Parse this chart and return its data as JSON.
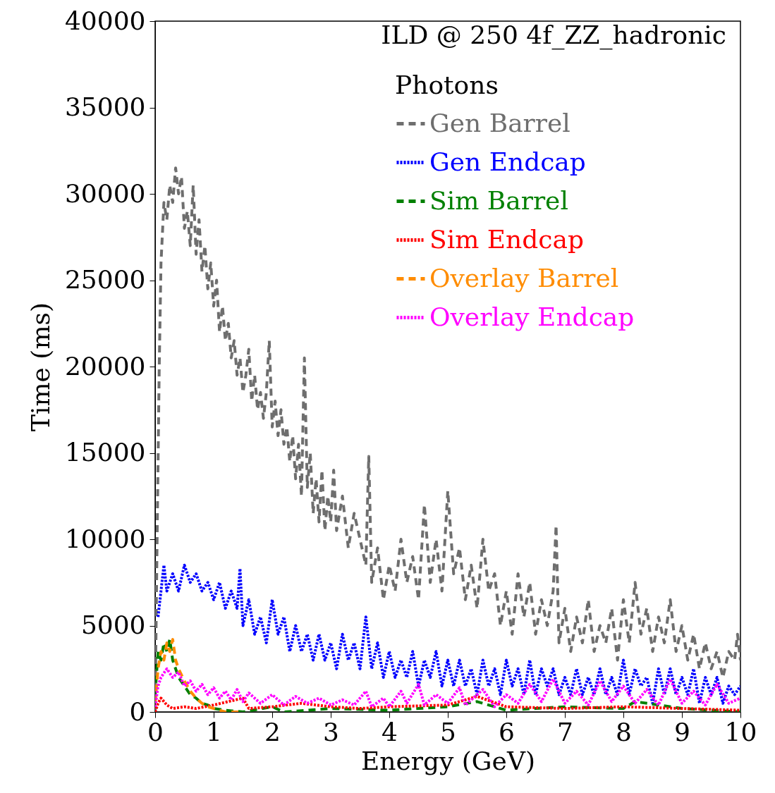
{
  "chart_data": {
    "type": "line",
    "title": "ILD @ 250 4f_ZZ_hadronic",
    "xlabel": "Energy (GeV)",
    "ylabel": "Time (ms)",
    "legend_title": "Photons",
    "legend": "top right",
    "grid": false,
    "marker": "none",
    "xlim": [
      0,
      10
    ],
    "xticks": [
      0,
      1,
      2,
      3,
      4,
      5,
      6,
      7,
      8,
      9,
      10
    ],
    "ylim": [
      0,
      40000
    ],
    "yticks": [
      0,
      5000,
      10000,
      15000,
      20000,
      25000,
      30000,
      35000,
      40000
    ],
    "series": [
      {
        "name": "Gen Barrel",
        "color": "#6e6e6e",
        "line_style": "dashed",
        "x": [
          0,
          0.03,
          0.07,
          0.1,
          0.15,
          0.2,
          0.25,
          0.3,
          0.35,
          0.4,
          0.45,
          0.5,
          0.55,
          0.6,
          0.65,
          0.7,
          0.75,
          0.8,
          0.85,
          0.9,
          0.95,
          1.0,
          1.05,
          1.1,
          1.15,
          1.2,
          1.25,
          1.3,
          1.35,
          1.4,
          1.45,
          1.5,
          1.55,
          1.6,
          1.65,
          1.7,
          1.75,
          1.8,
          1.85,
          1.9,
          1.95,
          2.0,
          2.05,
          2.1,
          2.15,
          2.2,
          2.25,
          2.3,
          2.35,
          2.4,
          2.45,
          2.5,
          2.55,
          2.6,
          2.65,
          2.7,
          2.75,
          2.8,
          2.85,
          2.9,
          2.95,
          3.0,
          3.05,
          3.1,
          3.2,
          3.3,
          3.4,
          3.5,
          3.6,
          3.65,
          3.7,
          3.8,
          3.9,
          4.0,
          4.1,
          4.2,
          4.3,
          4.4,
          4.5,
          4.6,
          4.7,
          4.8,
          4.9,
          5.0,
          5.1,
          5.2,
          5.3,
          5.4,
          5.5,
          5.6,
          5.7,
          5.8,
          5.9,
          6.0,
          6.1,
          6.2,
          6.3,
          6.4,
          6.5,
          6.6,
          6.7,
          6.8,
          6.85,
          6.9,
          7.0,
          7.1,
          7.2,
          7.3,
          7.4,
          7.5,
          7.6,
          7.7,
          7.8,
          7.9,
          8.0,
          8.1,
          8.2,
          8.3,
          8.4,
          8.5,
          8.6,
          8.7,
          8.8,
          8.9,
          9.0,
          9.1,
          9.2,
          9.3,
          9.4,
          9.5,
          9.6,
          9.7,
          9.8,
          9.9,
          9.95,
          10.0
        ],
        "values": [
          0,
          9000,
          20000,
          26000,
          29500,
          28500,
          30500,
          29500,
          31500,
          30000,
          31000,
          28000,
          29000,
          27000,
          30500,
          26500,
          28500,
          25500,
          27000,
          24500,
          26000,
          23500,
          25000,
          22000,
          23500,
          21500,
          22500,
          20500,
          21500,
          19500,
          20500,
          18500,
          19500,
          21000,
          18000,
          19500,
          17500,
          18500,
          17000,
          18500,
          21500,
          16500,
          18000,
          16000,
          17500,
          15500,
          16500,
          14500,
          16000,
          13500,
          15500,
          12500,
          20500,
          13000,
          15000,
          11500,
          13500,
          11000,
          14000,
          10500,
          12500,
          11000,
          14000,
          10500,
          12500,
          9500,
          11500,
          10000,
          8500,
          14800,
          7500,
          9500,
          6500,
          8500,
          7000,
          10000,
          7500,
          9000,
          6500,
          12000,
          7500,
          10000,
          7000,
          12800,
          8000,
          9500,
          6500,
          8500,
          6000,
          10000,
          7000,
          8000,
          5000,
          7000,
          4500,
          8000,
          5500,
          7500,
          4500,
          6500,
          5000,
          7000,
          10800,
          4000,
          6000,
          3500,
          5500,
          4000,
          6500,
          3500,
          5000,
          4000,
          6000,
          3000,
          6500,
          4000,
          7500,
          4500,
          6000,
          3500,
          5500,
          4000,
          6500,
          3500,
          5000,
          3000,
          4500,
          2500,
          4000,
          2500,
          3500,
          2000,
          3500,
          3000,
          4500,
          3000
        ]
      },
      {
        "name": "Gen Endcap",
        "color": "#0000ff",
        "line_style": "dotted",
        "x": [
          0.05,
          0.1,
          0.15,
          0.2,
          0.3,
          0.4,
          0.5,
          0.6,
          0.7,
          0.8,
          0.9,
          1.0,
          1.1,
          1.2,
          1.3,
          1.4,
          1.45,
          1.5,
          1.6,
          1.7,
          1.8,
          1.9,
          2.0,
          2.1,
          2.2,
          2.3,
          2.4,
          2.5,
          2.6,
          2.7,
          2.8,
          2.9,
          3.0,
          3.1,
          3.2,
          3.3,
          3.4,
          3.5,
          3.6,
          3.7,
          3.8,
          3.9,
          4.0,
          4.1,
          4.2,
          4.3,
          4.4,
          4.5,
          4.6,
          4.7,
          4.8,
          4.9,
          5.0,
          5.1,
          5.2,
          5.3,
          5.4,
          5.5,
          5.6,
          5.7,
          5.8,
          5.9,
          6.0,
          6.1,
          6.2,
          6.3,
          6.4,
          6.5,
          6.6,
          6.7,
          6.8,
          6.9,
          7.0,
          7.1,
          7.2,
          7.3,
          7.4,
          7.5,
          7.6,
          7.7,
          7.8,
          7.9,
          8.0,
          8.1,
          8.2,
          8.3,
          8.4,
          8.5,
          8.6,
          8.7,
          8.8,
          8.9,
          9.0,
          9.1,
          9.2,
          9.3,
          9.4,
          9.5,
          9.6,
          9.7,
          9.8,
          9.9,
          10.0
        ],
        "values": [
          5500,
          7000,
          8500,
          7000,
          8000,
          7000,
          8500,
          7500,
          8000,
          7000,
          7500,
          6500,
          7500,
          6000,
          7000,
          6000,
          8300,
          5000,
          6500,
          4500,
          5500,
          4000,
          6500,
          4500,
          5500,
          3500,
          5000,
          3500,
          4500,
          3000,
          4500,
          3000,
          4000,
          2500,
          4500,
          3000,
          4000,
          2500,
          5500,
          2500,
          4000,
          2000,
          3500,
          2000,
          3000,
          2000,
          3500,
          1500,
          3000,
          2000,
          3500,
          1500,
          3000,
          1500,
          3000,
          1500,
          2500,
          1000,
          3000,
          1500,
          2500,
          1000,
          3000,
          1500,
          2500,
          1000,
          3000,
          1000,
          2500,
          1500,
          2500,
          1000,
          2000,
          1000,
          2500,
          1000,
          2000,
          1000,
          2500,
          1000,
          2000,
          1000,
          3000,
          1000,
          2500,
          1500,
          2000,
          500,
          2500,
          1000,
          2500,
          1000,
          2000,
          1000,
          2500,
          500,
          2000,
          1000,
          2000,
          500,
          1500,
          1000,
          1500
        ]
      },
      {
        "name": "Sim Barrel",
        "color": "#008000",
        "line_style": "dashed",
        "x": [
          0,
          0.05,
          0.1,
          0.15,
          0.2,
          0.25,
          0.3,
          0.35,
          0.4,
          0.5,
          0.6,
          0.7,
          0.8,
          0.9,
          1.0,
          1.2,
          1.5,
          2.0,
          2.2,
          3.0,
          4.0,
          5.0,
          5.5,
          6.0,
          7.0,
          8.0,
          8.2,
          9.0,
          10.0
        ],
        "values": [
          1000,
          3500,
          3000,
          4000,
          3500,
          4200,
          3000,
          2500,
          2000,
          1500,
          1000,
          800,
          500,
          400,
          200,
          100,
          0,
          300,
          0,
          200,
          100,
          300,
          600,
          100,
          300,
          200,
          600,
          200,
          0
        ]
      },
      {
        "name": "Sim Endcap",
        "color": "#ff0000",
        "line_style": "dotted",
        "x": [
          0,
          0.05,
          0.1,
          0.2,
          0.3,
          0.5,
          0.7,
          1.0,
          1.5,
          1.6,
          2.0,
          2.5,
          3.0,
          3.5,
          4.0,
          5.0,
          5.5,
          6.0,
          7.0,
          8.0,
          9.0,
          10.0
        ],
        "values": [
          0,
          500,
          800,
          400,
          200,
          300,
          200,
          400,
          800,
          200,
          300,
          500,
          300,
          200,
          300,
          400,
          900,
          300,
          200,
          300,
          200,
          100
        ]
      },
      {
        "name": "Overlay Barrel",
        "color": "#ff8c00",
        "line_style": "dashed",
        "x": [
          0,
          0.05,
          0.1,
          0.15,
          0.2,
          0.25,
          0.3,
          0.35,
          0.4,
          0.5,
          0.6,
          0.7,
          0.8,
          0.9,
          1.0,
          1.1,
          1.2,
          1.5
        ],
        "values": [
          500,
          2500,
          3500,
          3000,
          4000,
          3500,
          4200,
          3000,
          2500,
          1800,
          1200,
          800,
          500,
          300,
          200,
          100,
          0,
          0
        ]
      },
      {
        "name": "Overlay Endcap",
        "color": "#ff00ff",
        "line_style": "dotted",
        "x": [
          0,
          0.05,
          0.1,
          0.2,
          0.3,
          0.4,
          0.5,
          0.6,
          0.7,
          0.8,
          0.9,
          1.0,
          1.1,
          1.2,
          1.3,
          1.4,
          1.5,
          1.6,
          1.8,
          2.0,
          2.2,
          2.4,
          2.6,
          2.8,
          3.0,
          3.2,
          3.4,
          3.6,
          3.7,
          3.9,
          4.0,
          4.2,
          4.3,
          4.5,
          4.6,
          4.8,
          5.0,
          5.2,
          5.3,
          5.6,
          5.8,
          6.0,
          6.2,
          6.4,
          6.6,
          6.8,
          7.0,
          7.2,
          7.4,
          7.6,
          7.8,
          8.0,
          8.2,
          8.4,
          8.6,
          8.8,
          9.0,
          9.2,
          9.4,
          9.6,
          9.8,
          10.0
        ],
        "values": [
          300,
          1500,
          2000,
          2500,
          2000,
          2300,
          1500,
          1800,
          1200,
          1600,
          1000,
          1400,
          800,
          1200,
          700,
          1300,
          600,
          1100,
          500,
          1000,
          400,
          900,
          500,
          800,
          400,
          700,
          400,
          1200,
          300,
          800,
          300,
          1200,
          500,
          1600,
          400,
          1000,
          500,
          1400,
          400,
          1300,
          300,
          1000,
          500,
          1600,
          600,
          1900,
          500,
          1200,
          400,
          1800,
          600,
          1500,
          500,
          1300,
          400,
          1900,
          500,
          1200,
          400,
          1600,
          500,
          800
        ]
      }
    ]
  }
}
